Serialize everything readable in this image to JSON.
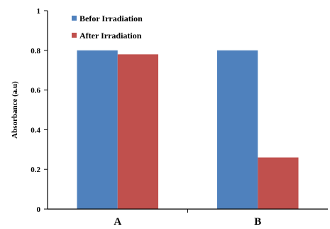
{
  "chart_data": {
    "type": "bar",
    "title": "",
    "xlabel": "",
    "ylabel": "Absorbance (a.u)",
    "categories": [
      "A",
      "B"
    ],
    "series": [
      {
        "name": "Befor Irradiation",
        "color": "#4f81bd",
        "values": [
          0.8,
          0.8
        ]
      },
      {
        "name": "After Irradiation",
        "color": "#c0504d",
        "values": [
          0.78,
          0.26
        ]
      }
    ],
    "ylim": [
      0,
      1
    ],
    "yticks": [
      "0",
      "0.2",
      "0.4",
      "0.6",
      "0.8",
      "1"
    ],
    "grid": false,
    "legend_position": "top-left"
  }
}
